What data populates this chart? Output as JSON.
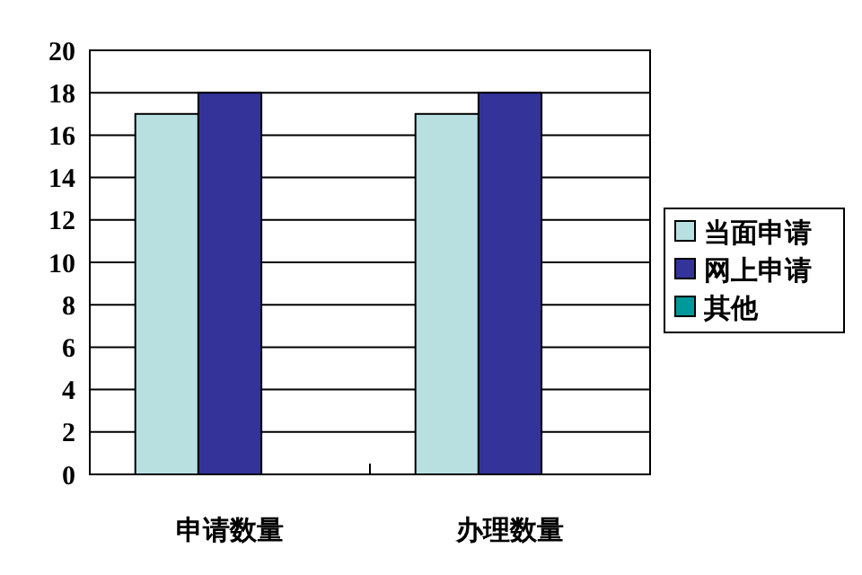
{
  "chart_data": {
    "type": "bar",
    "categories": [
      "申请数量",
      "办理数量"
    ],
    "series": [
      {
        "name": "当面申请",
        "color": "#b8e0e0",
        "values": [
          17,
          17
        ]
      },
      {
        "name": "网上申请",
        "color": "#333399",
        "values": [
          18,
          18
        ]
      },
      {
        "name": "其他",
        "color": "#009999",
        "values": [
          0,
          0
        ]
      }
    ],
    "ylim": [
      0,
      20
    ],
    "yticks": [
      0,
      2,
      4,
      6,
      8,
      10,
      12,
      14,
      16,
      18,
      20
    ],
    "grid": "y",
    "legend": "right"
  }
}
